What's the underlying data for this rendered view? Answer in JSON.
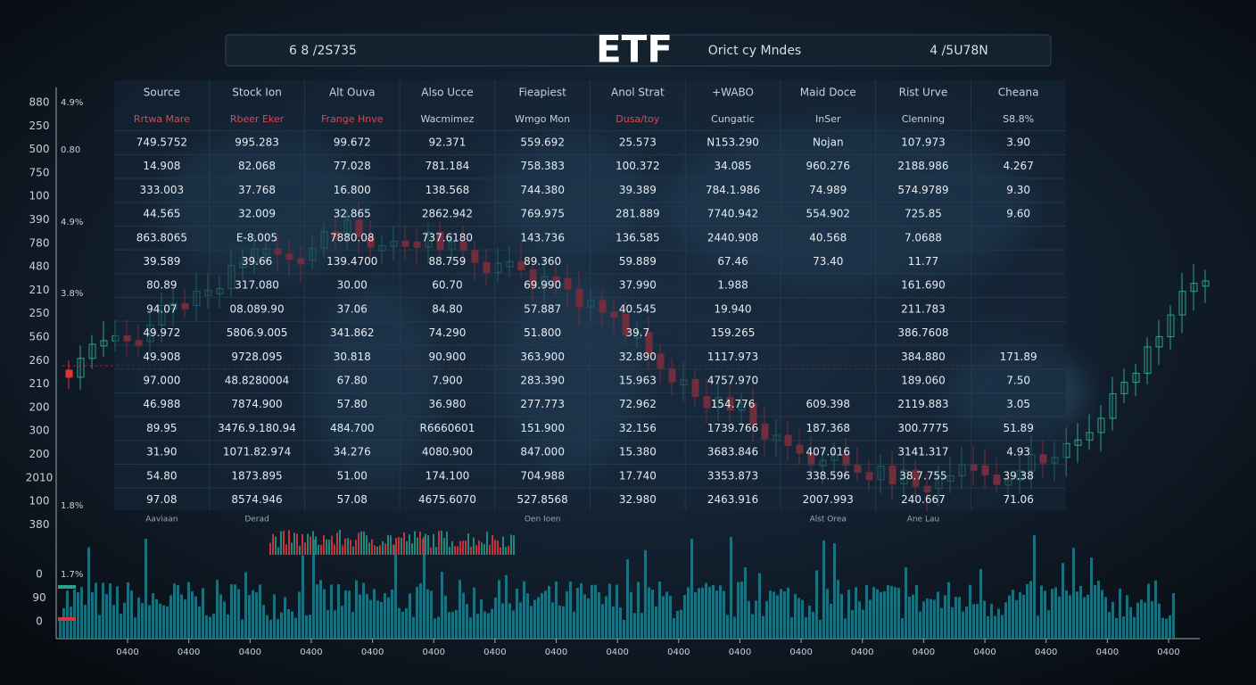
{
  "header": {
    "left": "6 8 /2S735",
    "title": "ETF",
    "subtitle": "Orict cy Mndes",
    "right": "4 /5U78N"
  },
  "table": {
    "headers": [
      "Source",
      "Stock Ion",
      "Alt Ouva",
      "Also Ucce",
      "Fieapiest",
      "Anol Strat",
      "+WABO",
      "Maid Doce",
      "Rist Urve",
      "Cheana"
    ],
    "subheaders": [
      "Rrtwa Mare",
      "Rbeer Eker",
      "Frange Hnve",
      "Wacmimez",
      "Wmgo Mon",
      "Dusa/toy",
      "Cungatic",
      "InSer",
      "Clenning",
      "S8.8%"
    ],
    "rows": [
      [
        "749.5752",
        "995.283",
        "99.672",
        "92.371",
        "559.692",
        "25.573",
        "N153.290",
        "Nojan",
        "107.973",
        "3.90"
      ],
      [
        "14.908",
        "82.068",
        "77.028",
        "781.184",
        "758.383",
        "100.372",
        "34.085",
        "960.276",
        "2188.986",
        "4.267"
      ],
      [
        "333.003",
        "37.768",
        "16.800",
        "138.568",
        "744.380",
        "39.389",
        "784.1.986",
        "74.989",
        "574.9789",
        "9.30"
      ],
      [
        "44.565",
        "32.009",
        "32.865",
        "2862.942",
        "769.975",
        "281.889",
        "7740.942",
        "554.902",
        "725.85",
        "9.60"
      ],
      [
        "863.8065",
        "E-8.005",
        "7880.08",
        "737.6180",
        "143.736",
        "136.585",
        "2440.908",
        "40.568",
        "7.0688",
        null
      ],
      [
        "39.589",
        "39.66",
        "139.4700",
        "88.759",
        "89.360",
        "59.889",
        "67.46",
        "73.40",
        "11.77",
        null
      ],
      [
        "80.89",
        "317.080",
        "30.00",
        "60.70",
        "69.990",
        "37.990",
        "1.988",
        null,
        "161.690",
        null
      ],
      [
        "94.07",
        "08.089.90",
        "37.06",
        "84.80",
        "57.887",
        "40.545",
        "19.940",
        null,
        "211.783",
        null
      ],
      [
        "49.972",
        "5806.9.005",
        "341.862",
        "74.290",
        "51.800",
        "39.7",
        "159.265",
        null,
        "386.7608",
        null
      ],
      [
        "49.908",
        "9728.095",
        "30.818",
        "90.900",
        "363.900",
        "32.890",
        "1117.973",
        null,
        "384.880",
        "171.89"
      ],
      [
        "97.000",
        "48.8280004",
        "67.80",
        "7.900",
        "283.390",
        "15.963",
        "4757.970",
        null,
        "189.060",
        "7.50"
      ],
      [
        "46.988",
        "7874.900",
        "57.80",
        "36.980",
        "277.773",
        "72.962",
        "154.776",
        "609.398",
        "2119.883",
        "3.05"
      ],
      [
        "89.95",
        "3476.9.180.94",
        "484.700",
        "R6660601",
        "151.900",
        "32.156",
        "1739.766",
        "187.368",
        "300.7775",
        "51.89"
      ],
      [
        "31.90",
        "1071.82.974",
        "34.276",
        "4080.900",
        "847.000",
        "15.380",
        "3683.846",
        "407.016",
        "3141.317",
        "4.93"
      ],
      [
        "54.80",
        "1873.895",
        "51.00",
        "174.100",
        "704.988",
        "17.740",
        "3353.873",
        "338.596",
        "38.7.755",
        "39.38"
      ],
      [
        "97.08",
        "8574.946",
        "57.08",
        "4675.6070",
        "527.8568",
        "32.980",
        "2463.916",
        "2007.993",
        "240.667",
        "71.06"
      ]
    ],
    "footer": [
      "Aaviaan",
      "Derad",
      null,
      null,
      "Oen Ioen",
      null,
      null,
      "Alst Orea",
      "Ane Lau",
      null
    ]
  },
  "left_axis": [
    "880",
    "250",
    "500",
    "750",
    "100",
    "390",
    "780",
    "480",
    "210",
    "250",
    "560",
    "260",
    "210",
    "200",
    "300",
    "200",
    "2010",
    "100",
    "380",
    "0",
    "90",
    "0"
  ],
  "left_axis_secondary": [
    "4.9%",
    "0.80",
    "4.9%",
    "3.8%",
    "1.8%",
    "1.7%"
  ],
  "bottom_axis": [
    "0400",
    "0400",
    "0400",
    "0400",
    "0400",
    "0400",
    "0400",
    "0400",
    "0400",
    "0400",
    "0400",
    "0400",
    "0400",
    "0400",
    "0400",
    "0400",
    "0400",
    "0400"
  ]
}
